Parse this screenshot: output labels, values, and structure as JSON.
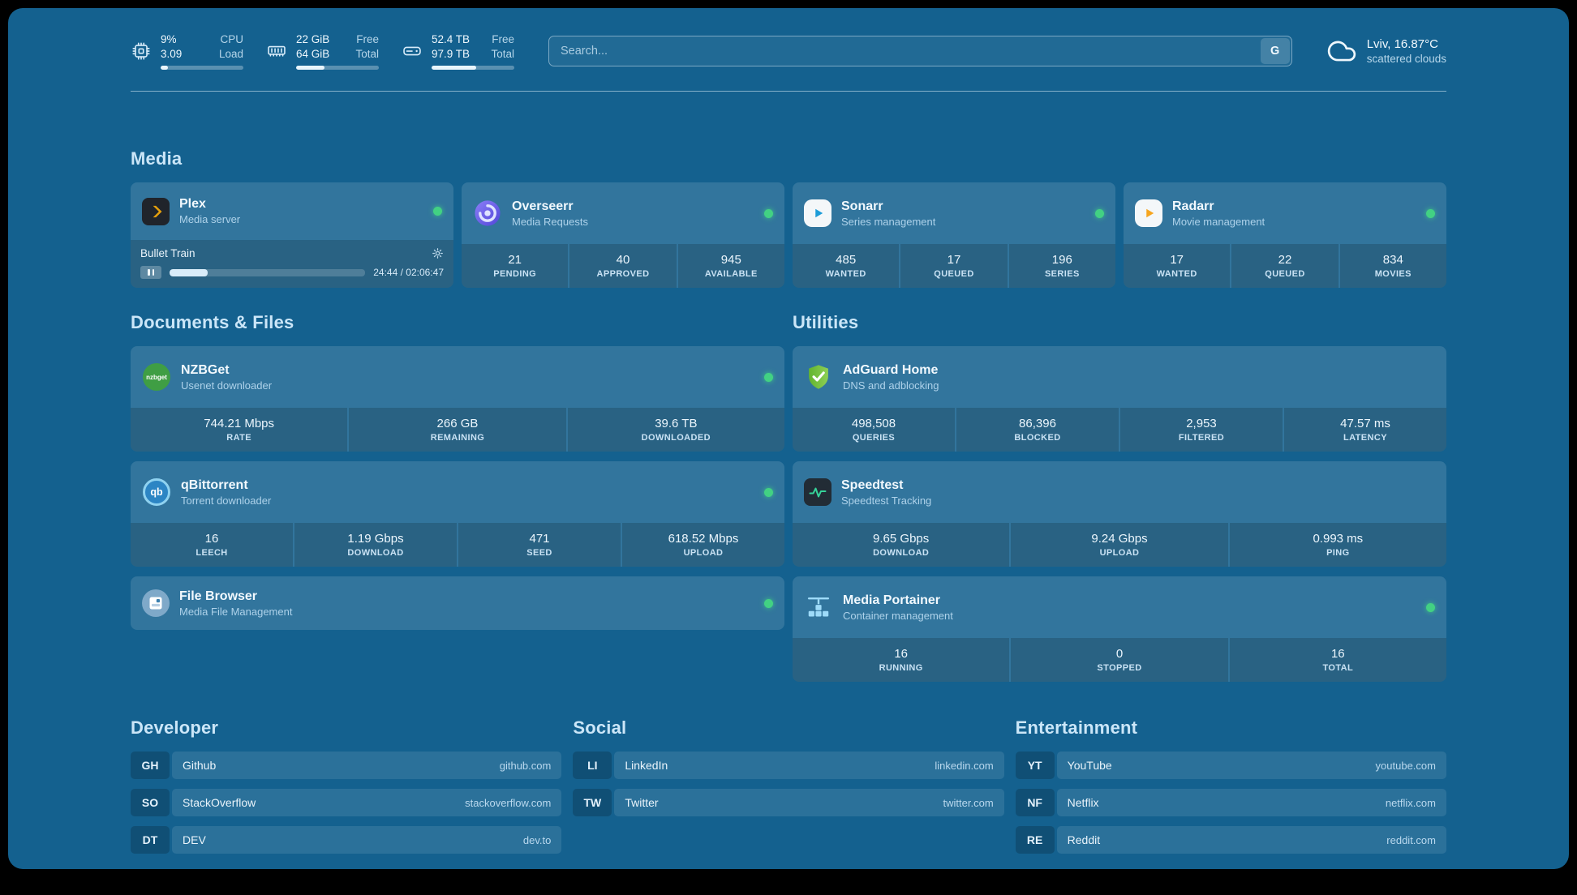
{
  "colors": {
    "panel_bg": "#14618f",
    "status_ok": "#42d183",
    "plex_amber": "#e5a00d",
    "adguard_green": "#63b42f"
  },
  "icons": {
    "cpu": "cpu-chip",
    "memory": "ram-stick",
    "disk": "hard-drive",
    "weather": "cloud",
    "search_engine": "google-g",
    "plex": "plex-chevron",
    "overseerr": "purple-swirl",
    "sonarr": "blue-play-arrow",
    "radarr": "amber-play-arrow",
    "nzbget": "green-circle-wordmark",
    "qbittorrent": "qb-circle",
    "filebrowser": "file-circle",
    "adguard": "green-shield-check",
    "speedtest": "pulse-line",
    "portainer": "crane-containers"
  },
  "topbar": {
    "resources": [
      {
        "name": "cpu",
        "values": [
          "9%",
          "3.09"
        ],
        "labels": [
          "CPU",
          "Load"
        ],
        "bar_pct": 9
      },
      {
        "name": "memory",
        "values": [
          "22 GiB",
          "64 GiB"
        ],
        "labels": [
          "Free",
          "Total"
        ],
        "bar_pct": 34
      },
      {
        "name": "disk",
        "values": [
          "52.4 TB",
          "97.9 TB"
        ],
        "labels": [
          "Free",
          "Total"
        ],
        "bar_pct": 54
      }
    ],
    "search": {
      "placeholder": "Search...",
      "button_label": "G"
    },
    "weather": {
      "location": "Lviv, 16.87°C",
      "condition": "scattered clouds"
    }
  },
  "media": {
    "title": "Media",
    "plex": {
      "name": "Plex",
      "desc": "Media server",
      "now_playing": "Bullet Train",
      "time": "24:44 / 02:06:47",
      "progress_pct": 19.5
    },
    "overseerr": {
      "name": "Overseerr",
      "desc": "Media Requests",
      "stats": [
        {
          "value": "21",
          "label": "PENDING"
        },
        {
          "value": "40",
          "label": "APPROVED"
        },
        {
          "value": "945",
          "label": "AVAILABLE"
        }
      ]
    },
    "sonarr": {
      "name": "Sonarr",
      "desc": "Series management",
      "stats": [
        {
          "value": "485",
          "label": "WANTED"
        },
        {
          "value": "17",
          "label": "QUEUED"
        },
        {
          "value": "196",
          "label": "SERIES"
        }
      ]
    },
    "radarr": {
      "name": "Radarr",
      "desc": "Movie management",
      "stats": [
        {
          "value": "17",
          "label": "WANTED"
        },
        {
          "value": "22",
          "label": "QUEUED"
        },
        {
          "value": "834",
          "label": "MOVIES"
        }
      ]
    }
  },
  "documents": {
    "title": "Documents & Files",
    "nzbget": {
      "name": "NZBGet",
      "desc": "Usenet downloader",
      "stats": [
        {
          "value": "744.21 Mbps",
          "label": "RATE"
        },
        {
          "value": "266 GB",
          "label": "REMAINING"
        },
        {
          "value": "39.6 TB",
          "label": "DOWNLOADED"
        }
      ]
    },
    "qbittorrent": {
      "name": "qBittorrent",
      "desc": "Torrent downloader",
      "stats": [
        {
          "value": "16",
          "label": "LEECH"
        },
        {
          "value": "1.19 Gbps",
          "label": "DOWNLOAD"
        },
        {
          "value": "471",
          "label": "SEED"
        },
        {
          "value": "618.52 Mbps",
          "label": "UPLOAD"
        }
      ]
    },
    "filebrowser": {
      "name": "File Browser",
      "desc": "Media File Management"
    }
  },
  "utilities": {
    "title": "Utilities",
    "adguard": {
      "name": "AdGuard Home",
      "desc": "DNS and adblocking",
      "stats": [
        {
          "value": "498,508",
          "label": "QUERIES"
        },
        {
          "value": "86,396",
          "label": "BLOCKED"
        },
        {
          "value": "2,953",
          "label": "FILTERED"
        },
        {
          "value": "47.57 ms",
          "label": "LATENCY"
        }
      ]
    },
    "speedtest": {
      "name": "Speedtest",
      "desc": "Speedtest Tracking",
      "stats": [
        {
          "value": "9.65 Gbps",
          "label": "DOWNLOAD"
        },
        {
          "value": "9.24 Gbps",
          "label": "UPLOAD"
        },
        {
          "value": "0.993 ms",
          "label": "PING"
        }
      ]
    },
    "portainer": {
      "name": "Media Portainer",
      "desc": "Container management",
      "stats": [
        {
          "value": "16",
          "label": "RUNNING"
        },
        {
          "value": "0",
          "label": "STOPPED"
        },
        {
          "value": "16",
          "label": "TOTAL"
        }
      ]
    }
  },
  "bookmarks": {
    "developer": {
      "title": "Developer",
      "items": [
        {
          "abbr": "GH",
          "name": "Github",
          "url": "github.com"
        },
        {
          "abbr": "SO",
          "name": "StackOverflow",
          "url": "stackoverflow.com"
        },
        {
          "abbr": "DT",
          "name": "DEV",
          "url": "dev.to"
        }
      ]
    },
    "social": {
      "title": "Social",
      "items": [
        {
          "abbr": "LI",
          "name": "LinkedIn",
          "url": "linkedin.com"
        },
        {
          "abbr": "TW",
          "name": "Twitter",
          "url": "twitter.com"
        }
      ]
    },
    "entertainment": {
      "title": "Entertainment",
      "items": [
        {
          "abbr": "YT",
          "name": "YouTube",
          "url": "youtube.com"
        },
        {
          "abbr": "NF",
          "name": "Netflix",
          "url": "netflix.com"
        },
        {
          "abbr": "RE",
          "name": "Reddit",
          "url": "reddit.com"
        }
      ]
    }
  }
}
